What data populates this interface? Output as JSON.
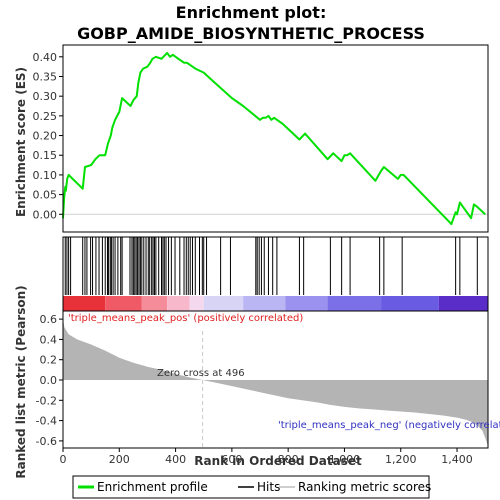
{
  "chart_data": {
    "type": "line",
    "title_line1": "Enrichment plot:",
    "title_line2": "GOBP_AMIDE_BIOSYNTHETIC_PROCESS",
    "es_ylabel": "Enrichment score (ES)",
    "metric_ylabel": "Ranked list metric (Pearson)",
    "xlabel": "Rank in Ordered Dataset",
    "xlim": [
      0,
      1510
    ],
    "es_ylim": [
      -0.045,
      0.43
    ],
    "metric_ylim": [
      -0.67,
      0.68
    ],
    "x_ticks": [
      0,
      200,
      400,
      600,
      800,
      1000,
      1200,
      1400
    ],
    "x_tick_labels": [
      "0",
      "200",
      "400",
      "600",
      "800",
      "1,000",
      "1,200",
      "1,400"
    ],
    "es_ticks": [
      0.0,
      0.05,
      0.1,
      0.15,
      0.2,
      0.25,
      0.3,
      0.35,
      0.4
    ],
    "es_tick_labels": [
      "0.00",
      "0.05",
      "0.10",
      "0.15",
      "0.20",
      "0.25",
      "0.30",
      "0.35",
      "0.40"
    ],
    "metric_ticks": [
      -0.6,
      -0.4,
      -0.2,
      0.0,
      0.2,
      0.4,
      0.6
    ],
    "metric_tick_labels": [
      "-0.6",
      "-0.4",
      "-0.2",
      "0.0",
      "0.2",
      "0.4",
      "0.6"
    ],
    "es_profile": {
      "x": [
        0,
        4,
        8,
        10,
        15,
        20,
        70,
        78,
        100,
        115,
        130,
        150,
        160,
        170,
        175,
        185,
        200,
        210,
        240,
        250,
        262,
        268,
        275,
        285,
        300,
        310,
        318,
        330,
        350,
        370,
        380,
        390,
        410,
        430,
        440,
        470,
        500,
        530,
        600,
        640,
        700,
        710,
        720,
        730,
        740,
        750,
        780,
        810,
        840,
        860,
        940,
        960,
        990,
        1000,
        1010,
        1020,
        1110,
        1130,
        1140,
        1190,
        1200,
        1210,
        1380,
        1395,
        1400,
        1410,
        1420,
        1450,
        1460,
        1470,
        1500
      ],
      "y": [
        -0.01,
        0.04,
        0.07,
        0.06,
        0.09,
        0.1,
        0.065,
        0.12,
        0.125,
        0.14,
        0.15,
        0.15,
        0.18,
        0.2,
        0.22,
        0.24,
        0.26,
        0.295,
        0.275,
        0.29,
        0.3,
        0.335,
        0.36,
        0.37,
        0.375,
        0.385,
        0.395,
        0.4,
        0.395,
        0.41,
        0.4,
        0.405,
        0.395,
        0.385,
        0.385,
        0.37,
        0.36,
        0.34,
        0.295,
        0.275,
        0.24,
        0.245,
        0.245,
        0.25,
        0.24,
        0.245,
        0.23,
        0.21,
        0.19,
        0.205,
        0.14,
        0.155,
        0.135,
        0.15,
        0.15,
        0.155,
        0.085,
        0.11,
        0.12,
        0.09,
        0.1,
        0.1,
        -0.025,
        0.005,
        0.0,
        0.03,
        0.02,
        -0.01,
        0.025,
        0.02,
        0.0
      ]
    },
    "hits": [
      8,
      14,
      20,
      27,
      70,
      78,
      85,
      98,
      105,
      117,
      128,
      140,
      150,
      158,
      162,
      168,
      172,
      178,
      185,
      195,
      205,
      210,
      238,
      245,
      250,
      255,
      260,
      265,
      270,
      275,
      280,
      287,
      295,
      303,
      308,
      315,
      320,
      325,
      330,
      340,
      350,
      355,
      360,
      366,
      375,
      385,
      398,
      415,
      430,
      438,
      445,
      452,
      460,
      470,
      485,
      495,
      500,
      510,
      560,
      595,
      685,
      690,
      697,
      705,
      715,
      730,
      745,
      760,
      840,
      855,
      950,
      990,
      1020,
      1125,
      1140,
      1205,
      1395,
      1410,
      1472
    ],
    "heat_segments": [
      {
        "x0": 0,
        "x1": 150,
        "color": "#e8323a"
      },
      {
        "x0": 150,
        "x1": 280,
        "color": "#f05a66"
      },
      {
        "x0": 280,
        "x1": 370,
        "color": "#f58c9a"
      },
      {
        "x0": 370,
        "x1": 450,
        "color": "#f8b8cc"
      },
      {
        "x0": 450,
        "x1": 500,
        "color": "#f4d8ee"
      },
      {
        "x0": 500,
        "x1": 640,
        "color": "#d8d4f6"
      },
      {
        "x0": 640,
        "x1": 790,
        "color": "#bab6f4"
      },
      {
        "x0": 790,
        "x1": 940,
        "color": "#9a92ee"
      },
      {
        "x0": 940,
        "x1": 1130,
        "color": "#7c70e8"
      },
      {
        "x0": 1130,
        "x1": 1335,
        "color": "#6a5ce2"
      },
      {
        "x0": 1335,
        "x1": 1510,
        "color": "#5a2cc8"
      }
    ],
    "metric_curve": {
      "x": [
        0,
        5,
        20,
        50,
        100,
        150,
        200,
        250,
        300,
        350,
        400,
        450,
        496,
        550,
        600,
        650,
        700,
        750,
        800,
        850,
        900,
        950,
        1000,
        1050,
        1100,
        1150,
        1200,
        1250,
        1300,
        1350,
        1400,
        1430,
        1450,
        1470,
        1490,
        1500,
        1510
      ],
      "y": [
        0.6,
        0.52,
        0.45,
        0.4,
        0.35,
        0.29,
        0.22,
        0.17,
        0.13,
        0.1,
        0.06,
        0.025,
        0.0,
        -0.03,
        -0.06,
        -0.09,
        -0.12,
        -0.15,
        -0.18,
        -0.2,
        -0.22,
        -0.245,
        -0.265,
        -0.28,
        -0.29,
        -0.3,
        -0.31,
        -0.32,
        -0.335,
        -0.35,
        -0.37,
        -0.39,
        -0.41,
        -0.44,
        -0.5,
        -0.57,
        -0.65
      ]
    },
    "zero_cross_label": "Zero cross at 496",
    "zero_cross_x": 496,
    "pos_label": "'triple_means_peak_pos' (positively correlated)",
    "neg_label": "'triple_means_peak_neg' (negatively correlated)",
    "legend": [
      {
        "label": "Enrichment profile",
        "color": "#00e000"
      },
      {
        "label": "Hits",
        "color": "#000000"
      },
      {
        "label": "Ranking metric scores",
        "color": "#bfbfbf"
      }
    ],
    "legend_placement": "bottom",
    "colors": {
      "profile": "#00e000",
      "metric_fill": "#b4b4b4",
      "pos_label": "#e02020",
      "neg_label": "#3030c0",
      "zero_line": "#d0d0d0",
      "frame": "#000000"
    }
  }
}
